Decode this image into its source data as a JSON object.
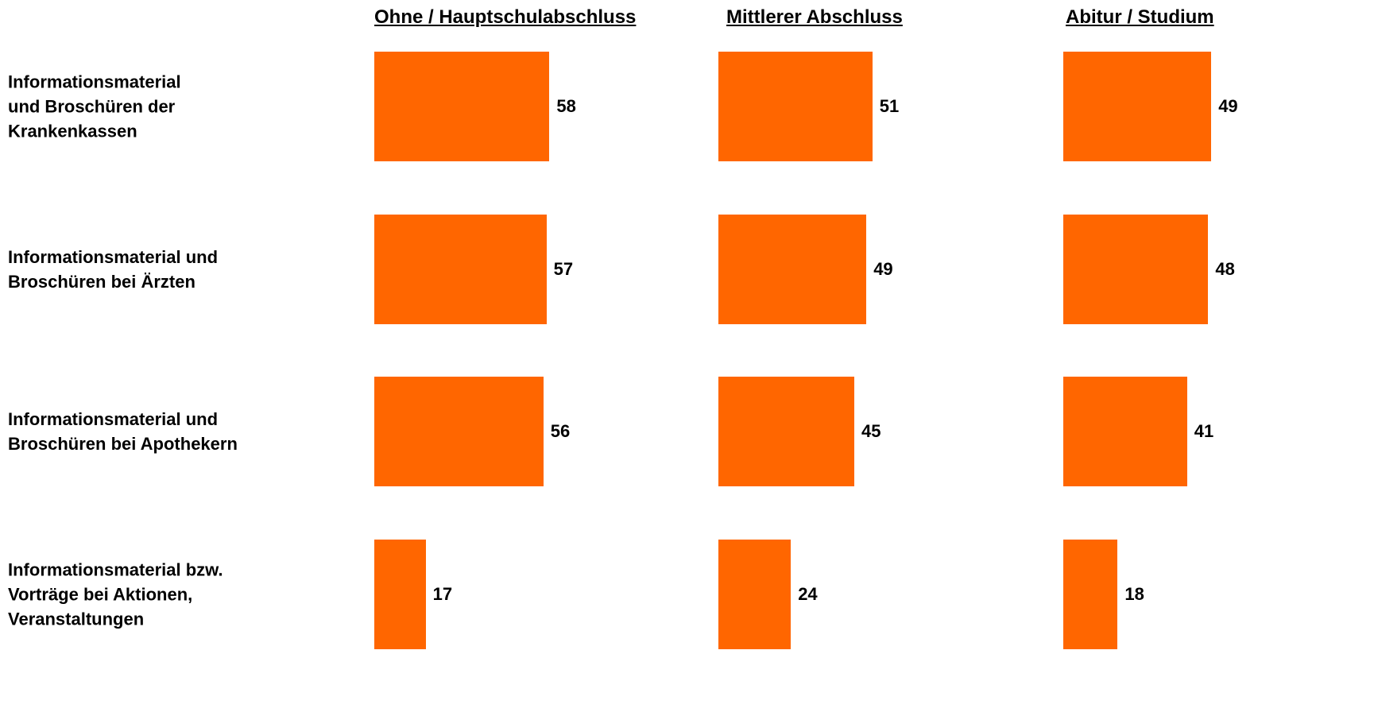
{
  "chart_data": {
    "type": "bar",
    "orientation": "horizontal",
    "categories": [
      "Informationsmaterial\nund Broschüren der\nKrankenkassen",
      "Informationsmaterial und\nBroschüren bei Ärzten",
      "Informationsmaterial und\nBroschüren bei Apothekern",
      "Informationsmaterial bzw.\nVorträge bei Aktionen,\nVeranstaltungen"
    ],
    "series": [
      {
        "name": "Ohne / Hauptschulabschluss",
        "color": "#ff6600",
        "values": [
          58,
          57,
          56,
          17
        ]
      },
      {
        "name": "Mittlerer Abschluss",
        "color": "#ff6600",
        "values": [
          51,
          49,
          45,
          24
        ]
      },
      {
        "name": "Abitur / Studium",
        "color": "#ff6600",
        "values": [
          49,
          48,
          41,
          18
        ]
      }
    ]
  }
}
